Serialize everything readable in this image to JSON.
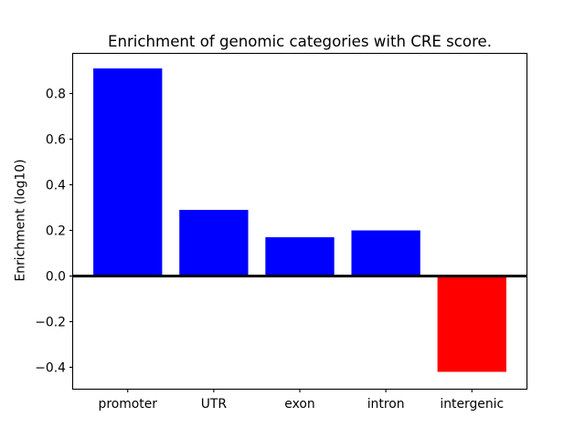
{
  "figure": {
    "background": "#ffffff"
  },
  "chart_data": {
    "type": "bar",
    "title": "Enrichment of genomic categories with CRE score.",
    "xlabel": "",
    "ylabel": "Enrichment (log10)",
    "categories": [
      "promoter",
      "UTR",
      "exon",
      "intron",
      "intergenic"
    ],
    "values": [
      0.91,
      0.29,
      0.17,
      0.2,
      -0.42
    ],
    "bar_colors": [
      "#0000ff",
      "#0000ff",
      "#0000ff",
      "#0000ff",
      "#ff0000"
    ],
    "positive_color": "#0000ff",
    "negative_color": "#ff0000",
    "yticks": [
      0.8,
      0.6,
      0.4,
      0.2,
      0.0,
      -0.2,
      -0.4
    ],
    "ytick_labels": [
      "0.8",
      "0.6",
      "0.4",
      "0.2",
      "0.0",
      "−0.2",
      "−0.4"
    ],
    "ylim": [
      -0.496,
      0.976
    ],
    "bar_width_fraction": 0.8,
    "x_margin": 0.64,
    "grid": false,
    "legend": null,
    "zero_line": {
      "color": "#000000",
      "width": 3
    },
    "axis_color": "#000000",
    "background_color": "#ffffff"
  }
}
